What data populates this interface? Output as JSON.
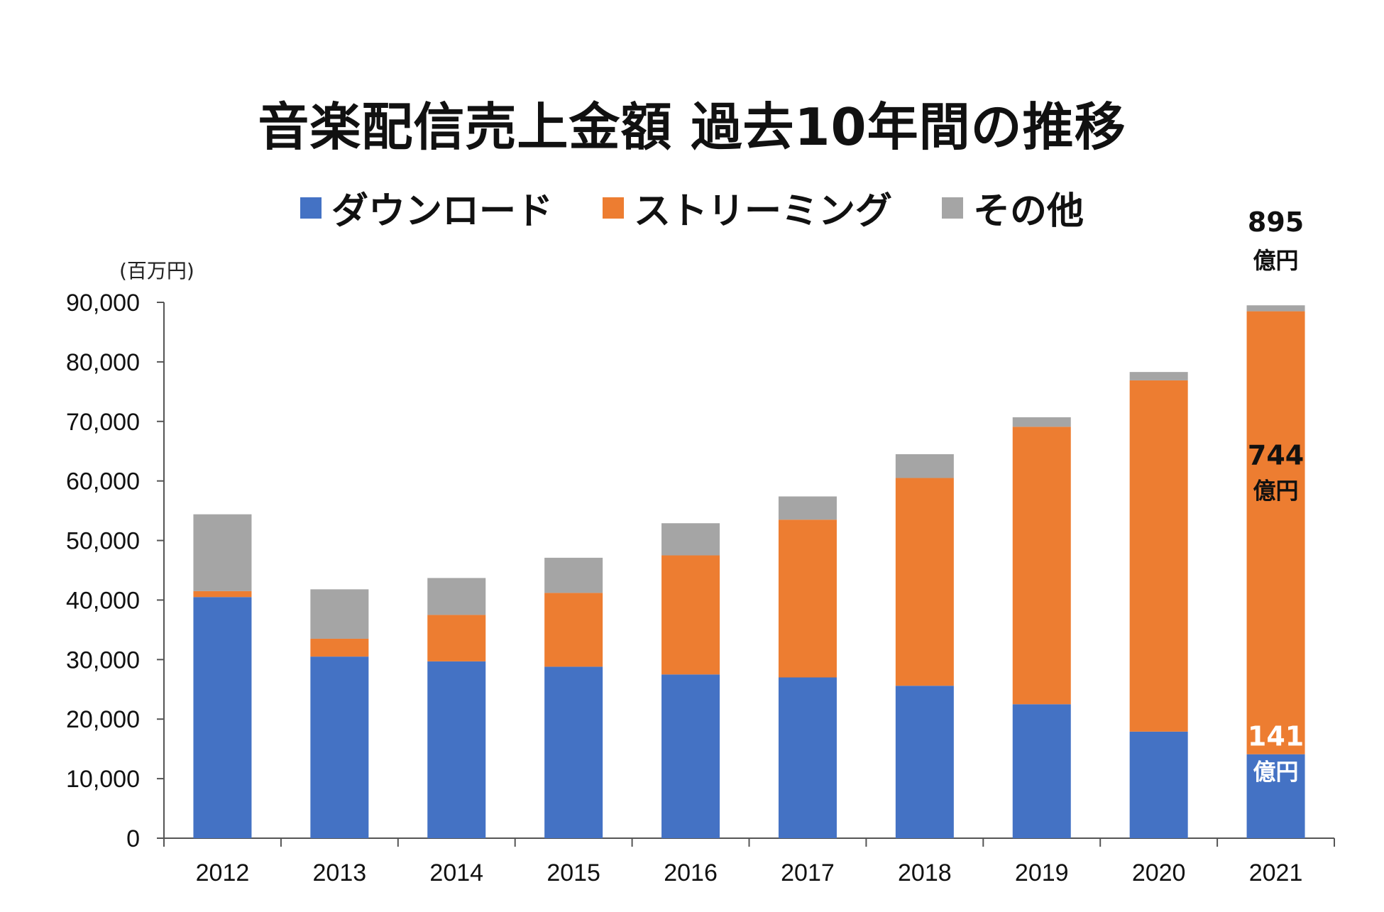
{
  "title": "音楽配信売上金額 過去10年間の推移",
  "unit_label": "(百万円)",
  "legend": [
    {
      "label": "ダウンロード",
      "color": "#4472C4"
    },
    {
      "label": "ストリーミング",
      "color": "#ED7D31"
    },
    {
      "label": "その他",
      "color": "#A5A5A5"
    }
  ],
  "chart_data": {
    "type": "bar",
    "stacked": true,
    "title": "音楽配信売上金額 過去10年間の推移",
    "categories": [
      "2012",
      "2013",
      "2014",
      "2015",
      "2016",
      "2017",
      "2018",
      "2019",
      "2020",
      "2021"
    ],
    "series": [
      {
        "name": "ダウンロード",
        "color": "#4472C4",
        "values": [
          40500,
          30500,
          29700,
          28800,
          27500,
          27000,
          25600,
          22500,
          17900,
          14100
        ]
      },
      {
        "name": "ストリーミング",
        "color": "#ED7D31",
        "values": [
          1000,
          3000,
          7800,
          12400,
          20000,
          26500,
          34900,
          46600,
          59000,
          74400
        ]
      },
      {
        "name": "その他",
        "color": "#A5A5A5",
        "values": [
          12900,
          8300,
          6200,
          5900,
          5400,
          3900,
          4000,
          1600,
          1400,
          1000
        ]
      }
    ],
    "ylim": [
      0,
      90000
    ],
    "yticks": [
      "0",
      "10,000",
      "20,000",
      "30,000",
      "40,000",
      "50,000",
      "60,000",
      "70,000",
      "80,000",
      "90,000"
    ],
    "ylabel": "(百万円)",
    "annotations": [
      {
        "num": "895",
        "unit": "億円",
        "position": "above-2021-total",
        "color": "#111111"
      },
      {
        "num": "744",
        "unit": "億円",
        "position": "2021-streaming",
        "color": "#111111"
      },
      {
        "num": "141",
        "unit": "億円",
        "position": "2021-download",
        "color": "#ffffff"
      }
    ]
  }
}
